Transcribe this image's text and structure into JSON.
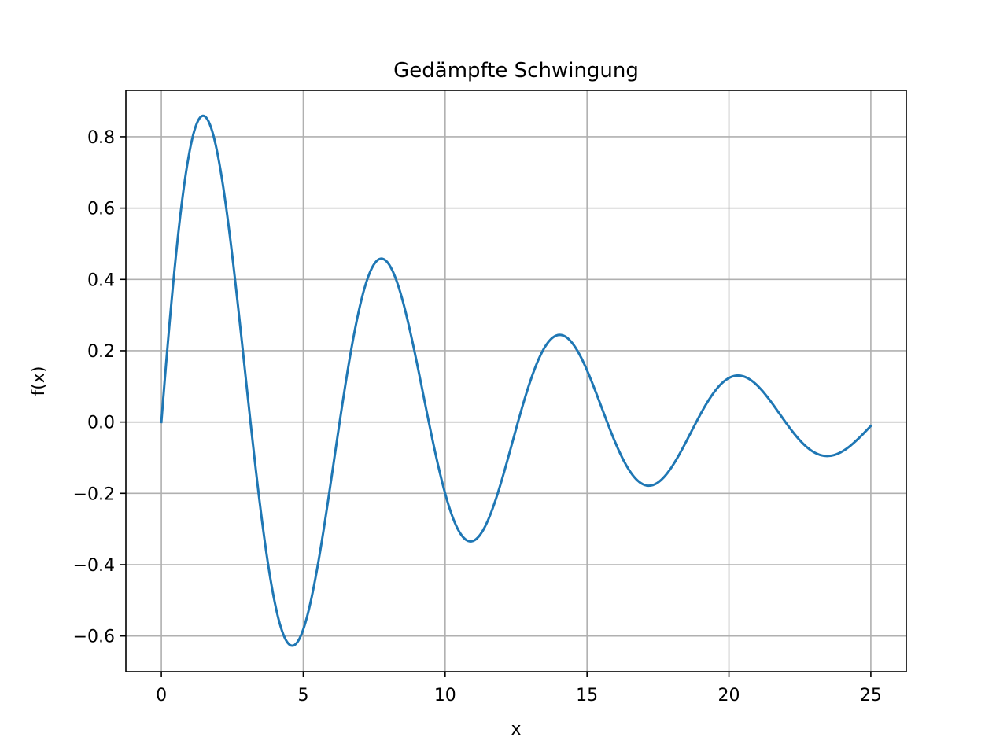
{
  "chart_data": {
    "type": "line",
    "title": "Gedämpfte Schwingung",
    "xlabel": "x",
    "ylabel": "f(x)",
    "xlim": [
      -1.25,
      26.25
    ],
    "ylim": [
      -0.7,
      0.93
    ],
    "grid": true,
    "x_ticks": [
      0,
      5,
      10,
      15,
      20,
      25
    ],
    "x_tick_labels": [
      "0",
      "5",
      "10",
      "15",
      "20",
      "25"
    ],
    "y_ticks": [
      -0.6,
      -0.4,
      -0.2,
      0.0,
      0.2,
      0.4,
      0.6,
      0.8
    ],
    "y_tick_labels": [
      "−0.6",
      "−0.4",
      "−0.2",
      "0.0",
      "0.2",
      "0.4",
      "0.6",
      "0.8"
    ],
    "colors": {
      "line": "#1f77b4",
      "grid": "#b0b0b0"
    },
    "series": [
      {
        "function": "exp(-0.1*x)*sin(x)",
        "x_range": [
          0,
          25
        ],
        "samples": 601,
        "points": [
          [
            0,
            0.0
          ],
          [
            1.5,
            0.858
          ],
          [
            3.14,
            0.0
          ],
          [
            4.6,
            -0.628
          ],
          [
            7.85,
            0.456
          ],
          [
            10.9,
            -0.333
          ],
          [
            14.1,
            0.244
          ],
          [
            17.2,
            -0.177
          ],
          [
            20.3,
            0.131
          ],
          [
            23.4,
            -0.096
          ],
          [
            25,
            -0.011
          ]
        ]
      }
    ]
  }
}
